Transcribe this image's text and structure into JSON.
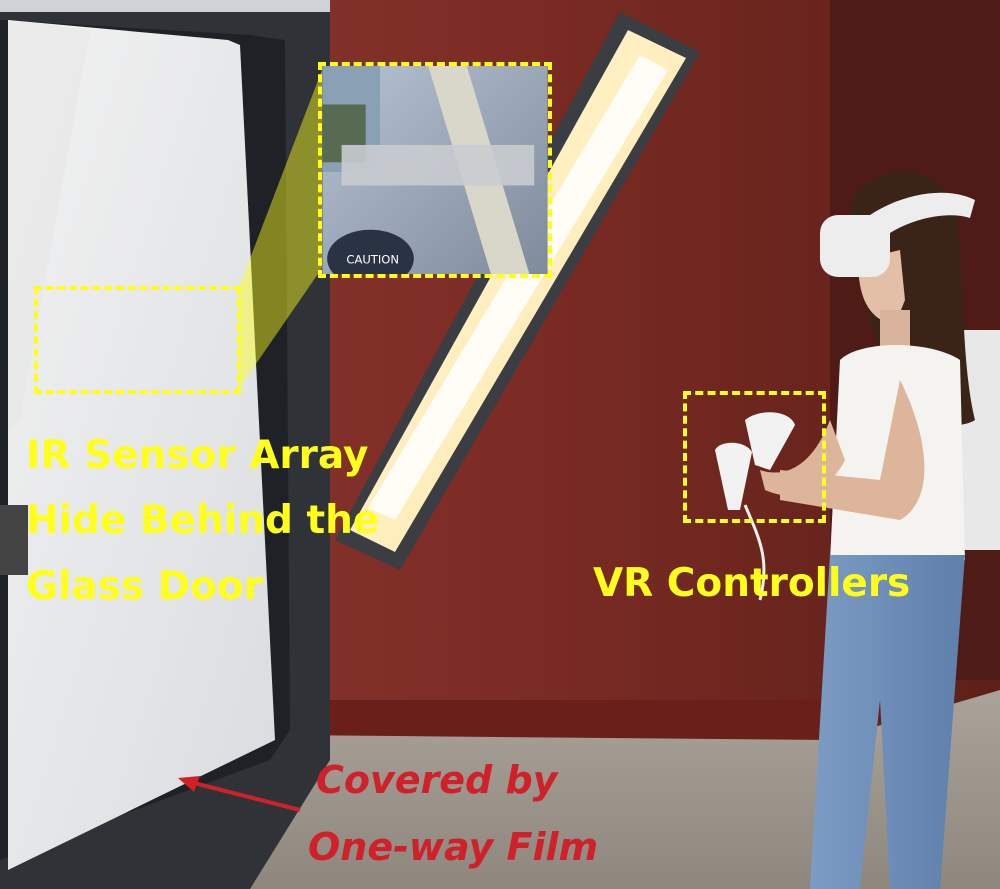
{
  "annotations": {
    "ir_sensor": {
      "line1": "IR Sensor Array",
      "line2": "Hide Behind the",
      "line3": "Glass Door"
    },
    "vr_controllers": "VR Controllers",
    "film": {
      "line1": "Covered by",
      "line2": "One-way Film"
    }
  },
  "zoom_inset": {
    "sticker_text": "CAUTION"
  },
  "colors": {
    "highlight": "#ffff1a",
    "annotation_red": "#d0202a",
    "wall": "#7a2a22"
  }
}
